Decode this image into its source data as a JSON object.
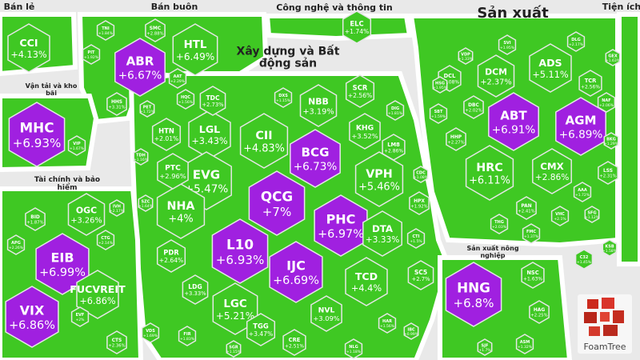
{
  "chart_data": {
    "type": "treemap",
    "title": "",
    "unit": "%",
    "colors": {
      "gain": "#3fc823",
      "ceiling": "#a020e0",
      "reference": "#f5b955",
      "cell_border": "#e6e6e6",
      "sector_gap": "#e9e9e9",
      "text_label": "#222222"
    },
    "sectors": [
      {
        "name": "Bán lẻ"
      },
      {
        "name": "Bán buôn"
      },
      {
        "name": "Công nghệ và thông tin"
      },
      {
        "name": "Sản xuất"
      },
      {
        "name": "Tiện ích"
      },
      {
        "name": "Vận tải và kho bãi"
      },
      {
        "name": "Xây dựng và Bất động sản"
      },
      {
        "name": "Tài chính và bảo hiểm"
      },
      {
        "name": "Sản xuất nông nghiệp"
      }
    ],
    "cells": [
      {
        "code": "CCI",
        "change": "+4.13%",
        "status": "gain"
      },
      {
        "code": "ABR",
        "change": "+6.67%",
        "status": "ceiling"
      },
      {
        "code": "HTL",
        "change": "+6.49%",
        "status": "gain"
      },
      {
        "code": "MHC",
        "change": "+6.93%",
        "status": "ceiling"
      },
      {
        "code": "ELC",
        "change": "+1.74%",
        "status": "gain"
      },
      {
        "code": "ADS",
        "change": "+5.11%",
        "status": "gain"
      },
      {
        "code": "DCM",
        "change": "+2.37%",
        "status": "gain"
      },
      {
        "code": "ABT",
        "change": "+6.91%",
        "status": "ceiling"
      },
      {
        "code": "AGM",
        "change": "+6.89%",
        "status": "ceiling"
      },
      {
        "code": "HRC",
        "change": "+6.11%",
        "status": "gain"
      },
      {
        "code": "CMX",
        "change": "+2.86%",
        "status": "gain"
      },
      {
        "code": "LGL",
        "change": "+3.43%",
        "status": "gain"
      },
      {
        "code": "CII",
        "change": "+4.83%",
        "status": "gain"
      },
      {
        "code": "NBB",
        "change": "+3.19%",
        "status": "gain"
      },
      {
        "code": "EVG",
        "change": "+5.47%",
        "status": "gain"
      },
      {
        "code": "BCG",
        "change": "+6.73%",
        "status": "ceiling"
      },
      {
        "code": "VPH",
        "change": "+5.46%",
        "status": "gain"
      },
      {
        "code": "QCG",
        "change": "+7%",
        "status": "ceiling"
      },
      {
        "code": "NHA",
        "change": "+4%",
        "status": "gain"
      },
      {
        "code": "PHC",
        "change": "+6.97%",
        "status": "ceiling"
      },
      {
        "code": "L10",
        "change": "+6.93%",
        "status": "ceiling"
      },
      {
        "code": "DTA",
        "change": "+3.33%",
        "status": "gain"
      },
      {
        "code": "IJC",
        "change": "+6.69%",
        "status": "ceiling"
      },
      {
        "code": "TCD",
        "change": "+4.4%",
        "status": "gain"
      },
      {
        "code": "LGC",
        "change": "+5.21%",
        "status": "gain"
      },
      {
        "code": "OGC",
        "change": "+3.26%",
        "status": "gain"
      },
      {
        "code": "EIB",
        "change": "+6.99%",
        "status": "ceiling"
      },
      {
        "code": "FUCVREIT",
        "change": "+6.86%",
        "status": "gain"
      },
      {
        "code": "VIX",
        "change": "+6.86%",
        "status": "ceiling"
      },
      {
        "code": "HNG",
        "change": "+6.8%",
        "status": "ceiling"
      },
      {
        "code": "SCR",
        "change": "+2.56%",
        "status": "gain"
      },
      {
        "code": "KHG",
        "change": "+3.52%",
        "status": "gain"
      },
      {
        "code": "LM8",
        "change": "+2.86%",
        "status": "gain"
      },
      {
        "code": "TDC",
        "change": "+2.73%",
        "status": "gain"
      },
      {
        "code": "PTC",
        "change": "+2.96%",
        "status": "gain"
      },
      {
        "code": "HTN",
        "change": "+2.01%",
        "status": "gain"
      },
      {
        "code": "PDR",
        "change": "+2.64%",
        "status": "gain"
      },
      {
        "code": "LDG",
        "change": "+3.33%",
        "status": "gain"
      },
      {
        "code": "TGG",
        "change": "+3.47%",
        "status": "gain"
      },
      {
        "code": "NVL",
        "change": "+3.09%",
        "status": "gain"
      },
      {
        "code": "CRE",
        "change": "+2.51%",
        "status": "gain"
      },
      {
        "code": "SC5",
        "change": "+2.7%",
        "status": "gain"
      },
      {
        "code": "HPX",
        "change": "+1.92%",
        "status": "gain"
      },
      {
        "code": "CTI",
        "change": "+1.5%",
        "status": "gain"
      },
      {
        "code": "HQC",
        "change": "+1.56%",
        "status": "gain"
      },
      {
        "code": "DXG",
        "change": "+1.82%",
        "status": "gain"
      },
      {
        "code": "DIG",
        "change": "+1.81%",
        "status": "gain"
      },
      {
        "code": "CDC",
        "change": "+1.08%",
        "status": "gain"
      },
      {
        "code": "HAR",
        "change": "+1.56%",
        "status": "gain"
      },
      {
        "code": "IBC",
        "change": "+0.99%",
        "status": "gain"
      },
      {
        "code": "NLG",
        "change": "+1.18%",
        "status": "gain"
      },
      {
        "code": "DXS",
        "change": "+1.15%",
        "status": "gain"
      },
      {
        "code": "FIR",
        "change": "+1.83%",
        "status": "gain"
      },
      {
        "code": "SGR",
        "change": "+1.15%",
        "status": "gain"
      },
      {
        "code": "SMC",
        "change": "+2.88%",
        "status": "gain"
      },
      {
        "code": "AAT",
        "change": "+2.29%",
        "status": "gain"
      },
      {
        "code": "TNI",
        "change": "+1.84%",
        "status": "gain"
      },
      {
        "code": "PIT",
        "change": "+1.92%",
        "status": "gain"
      },
      {
        "code": "HHS",
        "change": "+3.31%",
        "status": "gain"
      },
      {
        "code": "PET",
        "change": "+1.72%",
        "status": "gain"
      },
      {
        "code": "VIP",
        "change": "+1.67%",
        "status": "gain"
      },
      {
        "code": "TDH",
        "change": "+1.16%",
        "status": "gain"
      },
      {
        "code": "SZC",
        "change": "+1.64%",
        "status": "gain"
      },
      {
        "code": "BID",
        "change": "+1.87%",
        "status": "gain"
      },
      {
        "code": "APG",
        "change": "+2.26%",
        "status": "gain"
      },
      {
        "code": "CTG",
        "change": "+2.14%",
        "status": "gain"
      },
      {
        "code": "IVH",
        "change": "+2.17%",
        "status": "gain"
      },
      {
        "code": "EVF",
        "change": "+2%",
        "status": "gain"
      },
      {
        "code": "CTS",
        "change": "+2.36%",
        "status": "gain"
      },
      {
        "code": "VDS",
        "change": "+1.69%",
        "status": "gain"
      },
      {
        "code": "NSC",
        "change": "+1.63%",
        "status": "gain"
      },
      {
        "code": "HAG",
        "change": "+2.25%",
        "status": "gain"
      },
      {
        "code": "ASM",
        "change": "+1.32%",
        "status": "gain"
      },
      {
        "code": "SJF",
        "change": "+1.7%",
        "status": "gain"
      },
      {
        "code": "TCR",
        "change": "+2.56%",
        "status": "gain"
      },
      {
        "code": "DCL",
        "change": "+2.08%",
        "status": "gain"
      },
      {
        "code": "DBC",
        "change": "+2.02%",
        "status": "gain"
      },
      {
        "code": "HHP",
        "change": "+2.27%",
        "status": "gain"
      },
      {
        "code": "SBT",
        "change": "+1.59%",
        "status": "gain"
      },
      {
        "code": "HSG",
        "change": "+1.95%",
        "status": "gain"
      },
      {
        "code": "VDP",
        "change": "+1.33%",
        "status": "gain"
      },
      {
        "code": "SVI",
        "change": "+1.95%",
        "status": "gain"
      },
      {
        "code": "NAF",
        "change": "+2.06%",
        "status": "gain"
      },
      {
        "code": "DLG",
        "change": "+2.17%",
        "status": "gain"
      },
      {
        "code": "GEX",
        "change": "+1.63%",
        "status": "gain"
      },
      {
        "code": "LSS",
        "change": "+2.31%",
        "status": "gain"
      },
      {
        "code": "AAA",
        "change": "+1.72%",
        "status": "gain"
      },
      {
        "code": "PAN",
        "change": "+2.41%",
        "status": "gain"
      },
      {
        "code": "VHC",
        "change": "+2.1%",
        "status": "gain"
      },
      {
        "code": "SFG",
        "change": "+1.12%",
        "status": "gain"
      },
      {
        "code": "FMC",
        "change": "+1.37%",
        "status": "gain"
      },
      {
        "code": "THG",
        "change": "+2.03%",
        "status": "gain"
      },
      {
        "code": "C32",
        "change": "+1.45%",
        "status": "gain"
      },
      {
        "code": "KSB",
        "change": "+1.58%",
        "status": "gain"
      },
      {
        "code": "BKG",
        "change": "+1.29%",
        "status": "gain"
      }
    ],
    "brand": "FoamTree"
  }
}
